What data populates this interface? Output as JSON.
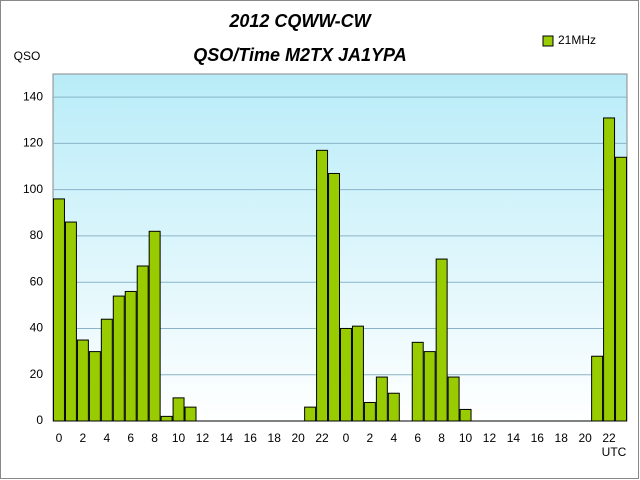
{
  "chart_data": {
    "type": "bar",
    "title": "2012  CQWW-CW",
    "subtitle": "QSO/Time  M2TX JA1YPA",
    "y_label": "QSO",
    "x_label": "UTC",
    "categories": [
      "0",
      null,
      "2",
      null,
      "4",
      null,
      "6",
      null,
      "8",
      null,
      "10",
      null,
      "12",
      null,
      "14",
      null,
      "16",
      null,
      "18",
      null,
      "20",
      null,
      "22",
      null,
      "0",
      null,
      "2",
      null,
      "4",
      null,
      "6",
      null,
      "8",
      null,
      "10",
      null,
      "12",
      null,
      "14",
      null,
      "16",
      null,
      "18",
      null,
      "20",
      null,
      "22",
      null
    ],
    "series": [
      {
        "name": "21MHz",
        "color": "#99cc00",
        "values": [
          96,
          86,
          35,
          30,
          44,
          54,
          56,
          67,
          82,
          2,
          10,
          6,
          0,
          0,
          0,
          0,
          0,
          0,
          0,
          0,
          0,
          6,
          117,
          107,
          40,
          41,
          8,
          19,
          12,
          0,
          34,
          30,
          70,
          19,
          5,
          0,
          0,
          0,
          0,
          0,
          0,
          0,
          0,
          0,
          0,
          28,
          131,
          114
        ]
      }
    ],
    "ylim": [
      0,
      150
    ],
    "yticks": [
      0,
      20,
      40,
      60,
      80,
      100,
      120,
      140
    ],
    "grid": true,
    "legend": "top-right"
  }
}
